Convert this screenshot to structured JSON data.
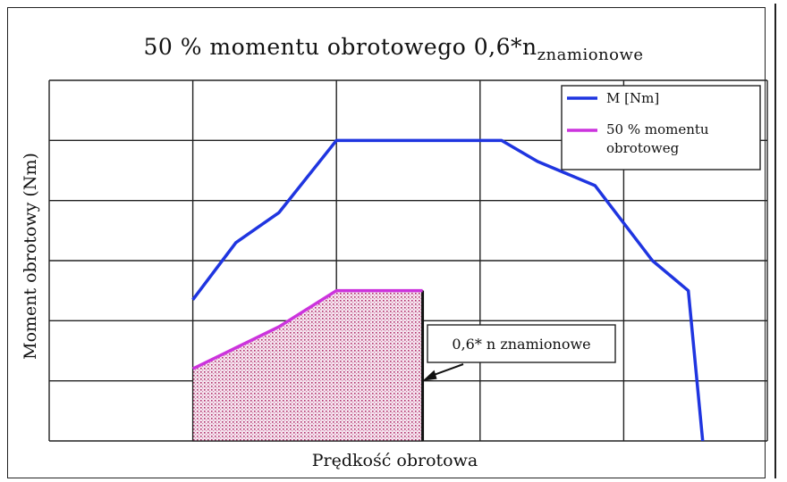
{
  "chart_data": {
    "type": "line",
    "title": "50 % momentu obrotowego 0,6*n",
    "title_subscript": "znamionowe",
    "xlabel": "Prędkość obrotowa",
    "ylabel": "Moment  obrotowy  (Nm)",
    "xlim": [
      0,
      5
    ],
    "ylim": [
      0,
      6
    ],
    "grid": true,
    "legend_position": "top-right",
    "series": [
      {
        "name": "M [Nm]",
        "color": "#1f35e0",
        "x": [
          1.0,
          1.3,
          1.6,
          2.0,
          2.5,
          3.15,
          3.4,
          3.8,
          4.2,
          4.45,
          4.55
        ],
        "y": [
          2.35,
          3.3,
          3.8,
          5.0,
          5.0,
          5.0,
          4.65,
          4.25,
          3.0,
          2.5,
          0.0
        ]
      },
      {
        "name": "50 % momentu obrotoweg",
        "color": "#cc33dd",
        "fill": "#d9a0c0",
        "x": [
          1.0,
          1.3,
          1.6,
          2.0,
          2.6,
          2.6
        ],
        "y": [
          1.2,
          1.55,
          1.9,
          2.5,
          2.5,
          0.0
        ]
      }
    ],
    "annotation": {
      "label": "0,6* n  znamionowe",
      "x": 2.6,
      "y": 1.0
    }
  }
}
